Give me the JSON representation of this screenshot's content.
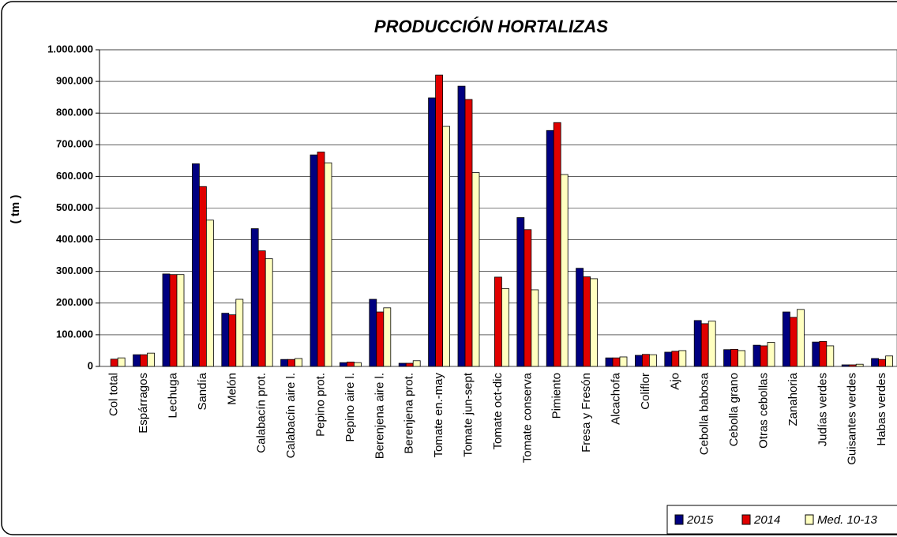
{
  "chart_data": {
    "type": "bar",
    "title": "PRODUCCIÓN HORTALIZAS",
    "y_label": "( tm )",
    "categories": [
      "Col total",
      "Espárragos",
      "Lechuga",
      "Sandía",
      "Melón",
      "Calabacín prot.",
      "Calabacín aire l.",
      "Pepino prot.",
      "Pepino aire l.",
      "Berenjena aire l.",
      "Berenjena prot.",
      "Tomate en.-may",
      "Tomate jun-sept",
      "Tomate oct-dic",
      "Tomate conserva",
      "Pimiento",
      "Fresa y Fresón",
      "Alcachofa",
      "Coliflor",
      "Ajo",
      "Cebolla babosa",
      "Cebolla grano",
      "Otras cebollas",
      "Zanahoria",
      "Judías verdes",
      "Guisantes verdes",
      "Habas verdes"
    ],
    "series": [
      {
        "name": "2015",
        "color": "#000080",
        "values": [
          0,
          37000,
          292000,
          640000,
          168000,
          435000,
          22000,
          668000,
          12000,
          212000,
          10000,
          848000,
          885000,
          0,
          470000,
          745000,
          310000,
          27000,
          35000,
          45000,
          145000,
          53000,
          67000,
          172000,
          77000,
          5000,
          25000
        ]
      },
      {
        "name": "2014",
        "color": "#e00000",
        "values": [
          23000,
          37000,
          290000,
          568000,
          163000,
          365000,
          22000,
          677000,
          14000,
          172000,
          10000,
          920000,
          843000,
          282000,
          432000,
          770000,
          283000,
          27000,
          38000,
          48000,
          135000,
          54000,
          65000,
          155000,
          79000,
          5000,
          22000
        ]
      },
      {
        "name": "Med. 10-13",
        "color": "#ffffc0",
        "values": [
          27000,
          42000,
          290000,
          462000,
          212000,
          340000,
          25000,
          643000,
          12000,
          185000,
          18000,
          758000,
          612000,
          246000,
          242000,
          606000,
          277000,
          30000,
          37000,
          50000,
          143000,
          50000,
          76000,
          180000,
          65000,
          7000,
          33000
        ]
      }
    ],
    "ylim": [
      0,
      1000000
    ],
    "yticks": [
      0,
      {
        "value": 100000,
        "label": "100.000"
      },
      {
        "value": 200000,
        "label": "200.000"
      },
      {
        "value": 300000,
        "label": "300.000"
      },
      {
        "value": 400000,
        "label": "400.000"
      },
      {
        "value": 500000,
        "label": "500.000"
      },
      {
        "value": 600000,
        "label": "600.000"
      },
      {
        "value": 700000,
        "label": "700.000"
      },
      {
        "value": 800000,
        "label": "800.000"
      },
      {
        "value": 900000,
        "label": "900.000"
      },
      {
        "value": 1000000,
        "label": "1.000.000"
      }
    ],
    "grid": true,
    "legend": "bottom-right"
  }
}
